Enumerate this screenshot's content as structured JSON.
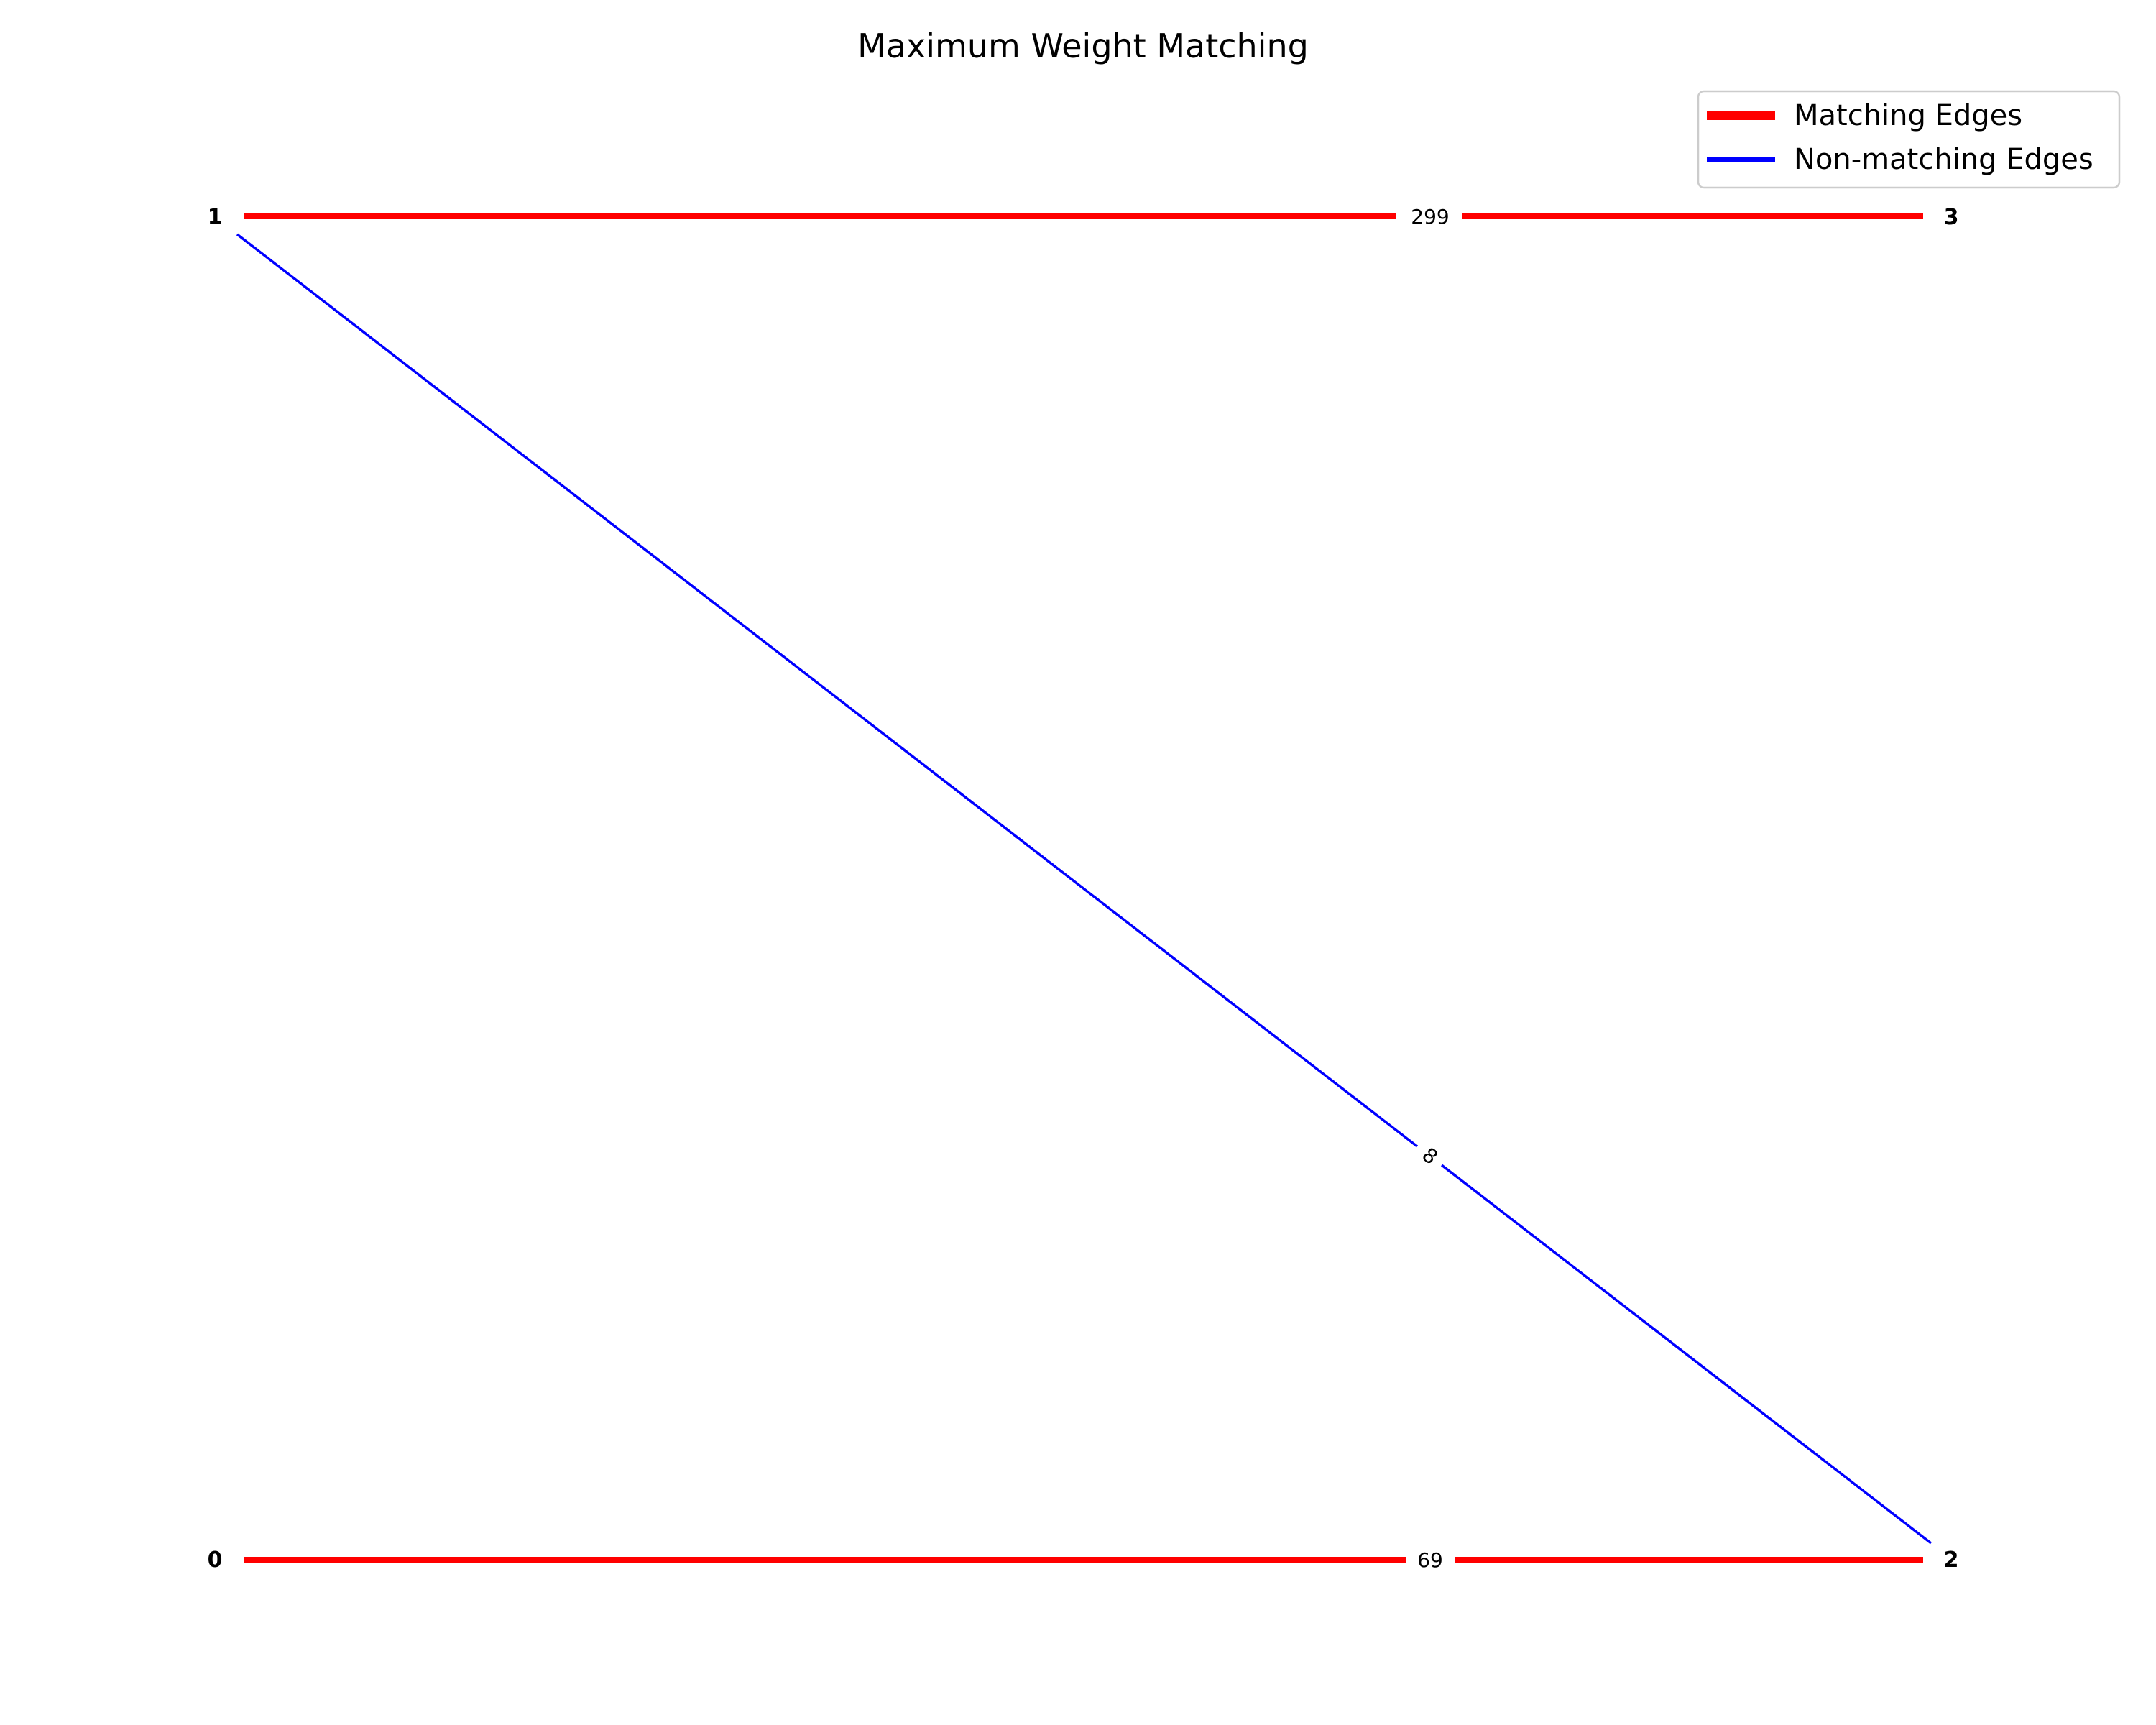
{
  "title": "Maximum Weight Matching",
  "nodes": [
    {
      "id": "0",
      "label": "0"
    },
    {
      "id": "1",
      "label": "1"
    },
    {
      "id": "2",
      "label": "2"
    },
    {
      "id": "3",
      "label": "3"
    }
  ],
  "edges": [
    {
      "from": "1",
      "to": "3",
      "weight": "299",
      "matching": true
    },
    {
      "from": "1",
      "to": "2",
      "weight": "8",
      "matching": false
    },
    {
      "from": "0",
      "to": "2",
      "weight": "69",
      "matching": true
    }
  ],
  "legend": {
    "matching_label": "Matching Edges",
    "non_matching_label": "Non-matching Edges"
  },
  "colors": {
    "matching": "#ff0000",
    "non_matching": "#0000ff",
    "legend_border": "#cccccc"
  }
}
